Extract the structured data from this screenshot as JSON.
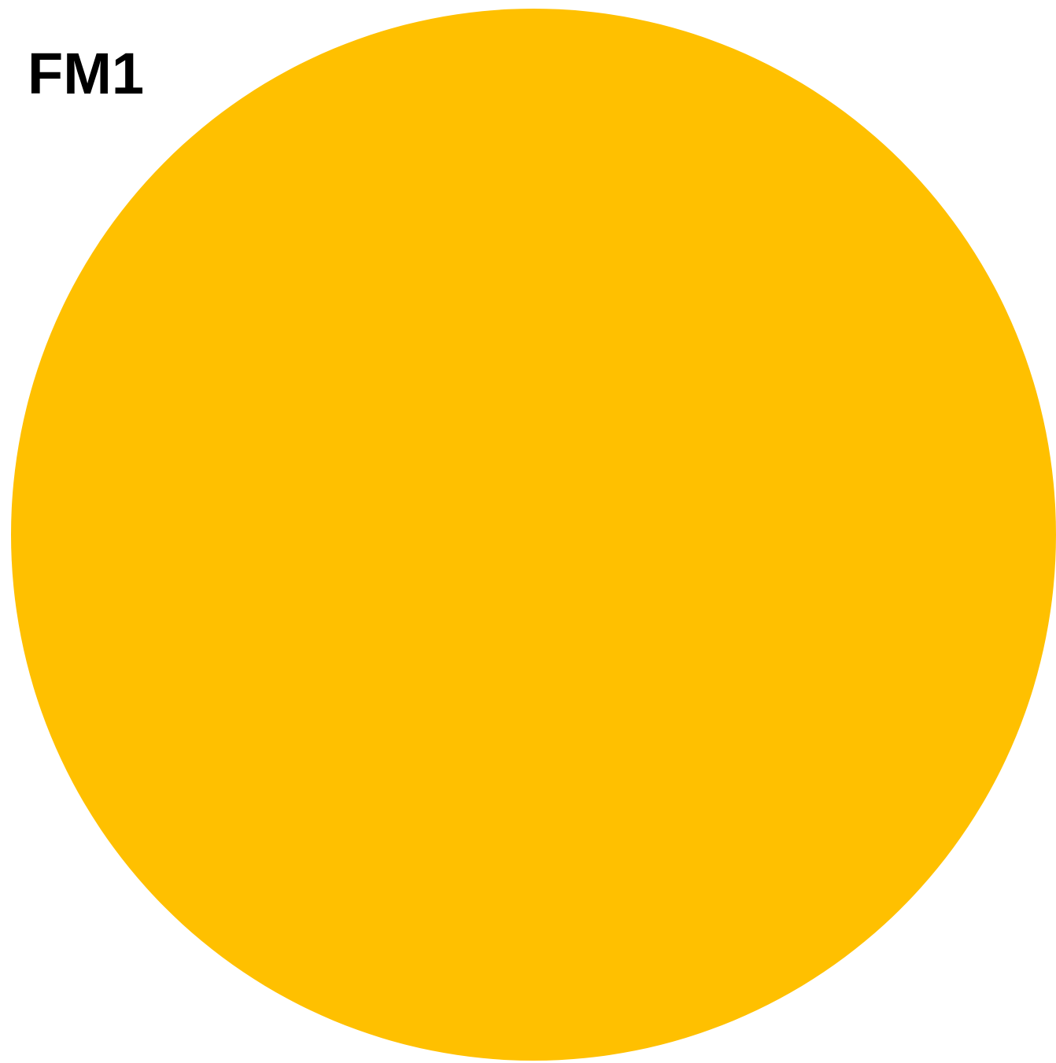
{
  "label": "FM1",
  "colors": {
    "background": "#ffffff",
    "disc": "#ffc000",
    "label": "#000000"
  }
}
